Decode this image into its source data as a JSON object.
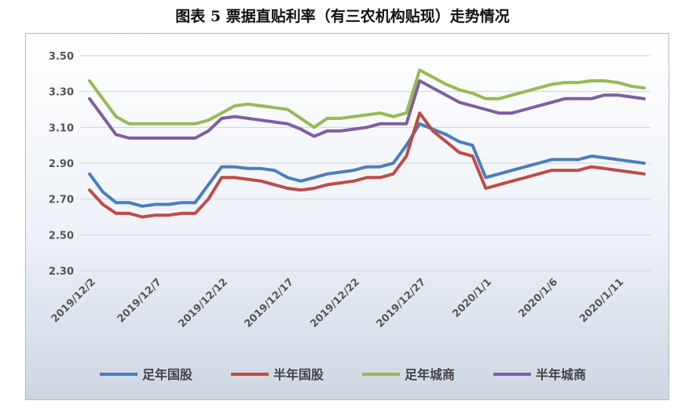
{
  "page": {
    "title": "图表 5  票据直贴利率（有三农机构贴现）走势情况"
  },
  "colors": {
    "zu_nian_guo_gu": "#4a7ebb",
    "ban_nian_guo_gu": "#be4b48",
    "zu_nian_cheng_shang": "#98b954",
    "ban_nian_cheng_shang": "#7d5fa0",
    "grid": "#d0d4da",
    "axis_text": "#555555"
  },
  "chart_data": {
    "type": "line",
    "title": "",
    "xlabel": "",
    "ylabel": "",
    "ylim": [
      2.3,
      3.5
    ],
    "yticks": [
      "3.50",
      "3.30",
      "3.10",
      "2.90",
      "2.70",
      "2.50",
      "2.30"
    ],
    "grid": "horizontal",
    "legend_position": "bottom",
    "x": [
      "2019/12/2",
      "2019/12/3",
      "2019/12/4",
      "2019/12/5",
      "2019/12/6",
      "2019/12/7",
      "2019/12/8",
      "2019/12/9",
      "2019/12/10",
      "2019/12/11",
      "2019/12/12",
      "2019/12/13",
      "2019/12/14",
      "2019/12/15",
      "2019/12/16",
      "2019/12/17",
      "2019/12/18",
      "2019/12/19",
      "2019/12/20",
      "2019/12/21",
      "2019/12/22",
      "2019/12/23",
      "2019/12/24",
      "2019/12/25",
      "2019/12/26",
      "2019/12/27",
      "2019/12/28",
      "2019/12/29",
      "2019/12/30",
      "2019/12/31",
      "2020/1/1",
      "2020/1/2",
      "2020/1/3",
      "2020/1/4",
      "2020/1/5",
      "2020/1/6",
      "2020/1/7",
      "2020/1/8",
      "2020/1/9",
      "2020/1/10",
      "2020/1/11",
      "2020/1/12",
      "2020/1/13"
    ],
    "x_tick_labels": [
      "2019/12/2",
      "2019/12/7",
      "2019/12/12",
      "2019/12/17",
      "2019/12/22",
      "2019/12/27",
      "2020/1/1",
      "2020/1/6",
      "2020/1/11"
    ],
    "series": [
      {
        "name": "足年国股",
        "color_key": "zu_nian_guo_gu",
        "values": [
          2.84,
          2.74,
          2.68,
          2.68,
          2.66,
          2.67,
          2.67,
          2.68,
          2.68,
          2.78,
          2.88,
          2.88,
          2.87,
          2.87,
          2.86,
          2.82,
          2.8,
          2.82,
          2.84,
          2.85,
          2.86,
          2.88,
          2.88,
          2.9,
          3.0,
          3.12,
          3.09,
          3.06,
          3.02,
          3.0,
          2.82,
          2.84,
          2.86,
          2.88,
          2.9,
          2.92,
          2.92,
          2.92,
          2.94,
          2.93,
          2.92,
          2.91,
          2.9
        ]
      },
      {
        "name": "半年国股",
        "color_key": "ban_nian_guo_gu",
        "values": [
          2.75,
          2.67,
          2.62,
          2.62,
          2.6,
          2.61,
          2.61,
          2.62,
          2.62,
          2.7,
          2.82,
          2.82,
          2.81,
          2.8,
          2.78,
          2.76,
          2.75,
          2.76,
          2.78,
          2.79,
          2.8,
          2.82,
          2.82,
          2.84,
          2.94,
          3.18,
          3.08,
          3.02,
          2.96,
          2.94,
          2.76,
          2.78,
          2.8,
          2.82,
          2.84,
          2.86,
          2.86,
          2.86,
          2.88,
          2.87,
          2.86,
          2.85,
          2.84
        ]
      },
      {
        "name": "足年城商",
        "color_key": "zu_nian_cheng_shang",
        "values": [
          3.36,
          3.26,
          3.16,
          3.12,
          3.12,
          3.12,
          3.12,
          3.12,
          3.12,
          3.14,
          3.18,
          3.22,
          3.23,
          3.22,
          3.21,
          3.2,
          3.15,
          3.1,
          3.15,
          3.15,
          3.16,
          3.17,
          3.18,
          3.16,
          3.18,
          3.42,
          3.38,
          3.34,
          3.31,
          3.29,
          3.26,
          3.26,
          3.28,
          3.3,
          3.32,
          3.34,
          3.35,
          3.35,
          3.36,
          3.36,
          3.35,
          3.33,
          3.32
        ]
      },
      {
        "name": "半年城商",
        "color_key": "ban_nian_cheng_shang",
        "values": [
          3.26,
          3.16,
          3.06,
          3.04,
          3.04,
          3.04,
          3.04,
          3.04,
          3.04,
          3.08,
          3.15,
          3.16,
          3.15,
          3.14,
          3.13,
          3.12,
          3.09,
          3.05,
          3.08,
          3.08,
          3.09,
          3.1,
          3.12,
          3.12,
          3.12,
          3.36,
          3.32,
          3.28,
          3.24,
          3.22,
          3.2,
          3.18,
          3.18,
          3.2,
          3.22,
          3.24,
          3.26,
          3.26,
          3.26,
          3.28,
          3.28,
          3.27,
          3.26
        ]
      }
    ]
  }
}
